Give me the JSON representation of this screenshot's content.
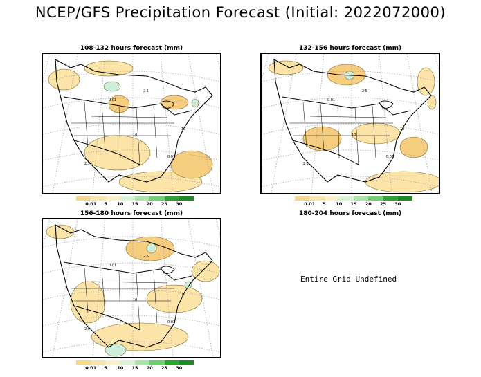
{
  "title": "NCEP/GFS Precipitation Forecast (Initial: 2022072000)",
  "panels": [
    {
      "title": "108-132 hours forecast (mm)"
    },
    {
      "title": "132-156 hours forecast (mm)"
    },
    {
      "title": "156-180 hours forecast (mm)"
    },
    {
      "title": "180-204 hours forecast (mm)",
      "message": "Entire Grid Undefined"
    }
  ],
  "legend": {
    "labels": [
      "0.01",
      "5",
      "10",
      "15",
      "20",
      "25",
      "30"
    ],
    "colors": [
      "#f5d88c",
      "#f9e6a6",
      "#fbf0c6",
      "#d8f3d6",
      "#a9e6a6",
      "#6fd06f",
      "#2fa52f",
      "#1e8a22"
    ]
  },
  "colors": {
    "light_precip": "#fce3a8",
    "medium_precip": "#f6cd7e",
    "heavy_precip": "#cdeedb",
    "boundaries": "#000000",
    "graticule": "#9a9a9a"
  },
  "contour_labels": [
    "0.01",
    "2.5",
    "10"
  ]
}
